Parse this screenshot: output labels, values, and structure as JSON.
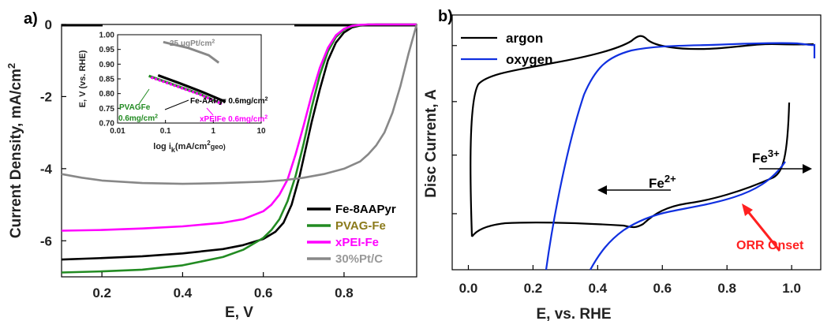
{
  "chart_data": [
    {
      "panel": "a)",
      "type": "line",
      "xlabel": "E, V",
      "ylabel": "Current Density, mA/cm",
      "ylabel_sup": "2",
      "xlim": [
        0.1,
        0.98
      ],
      "ylim": [
        -7,
        0
      ],
      "xticks": [
        0.2,
        0.4,
        0.6,
        0.8
      ],
      "yticks": [
        0,
        -2,
        -4,
        -6
      ],
      "legend_position": "bottom-right",
      "series": [
        {
          "name": "Fe-8AAPyr",
          "color": "#000000",
          "text_color": "#000000",
          "x": [
            0.1,
            0.2,
            0.3,
            0.4,
            0.5,
            0.55,
            0.6,
            0.63,
            0.65,
            0.67,
            0.69,
            0.7,
            0.72,
            0.74,
            0.76,
            0.78,
            0.8,
            0.82,
            0.84,
            0.86,
            0.88,
            0.9,
            0.92,
            0.94,
            0.96,
            0.98
          ],
          "y": [
            -6.52,
            -6.48,
            -6.43,
            -6.35,
            -6.23,
            -6.12,
            -5.95,
            -5.75,
            -5.5,
            -5.0,
            -4.2,
            -3.7,
            -2.7,
            -1.8,
            -1.0,
            -0.5,
            -0.22,
            -0.08,
            -0.03,
            -0.01,
            0,
            0,
            0,
            0,
            0,
            0
          ]
        },
        {
          "name": "PVAG-Fe",
          "color": "#228b22",
          "text_color": "#8b7a1a",
          "x": [
            0.1,
            0.2,
            0.3,
            0.4,
            0.5,
            0.55,
            0.6,
            0.62,
            0.64,
            0.66,
            0.68,
            0.7,
            0.72,
            0.74,
            0.76,
            0.78,
            0.8,
            0.82,
            0.84,
            0.86,
            0.88,
            0.9,
            0.92,
            0.94,
            0.96,
            0.98
          ],
          "y": [
            -6.88,
            -6.85,
            -6.8,
            -6.68,
            -6.45,
            -6.25,
            -5.92,
            -5.7,
            -5.4,
            -4.9,
            -4.2,
            -3.3,
            -2.3,
            -1.4,
            -0.75,
            -0.35,
            -0.14,
            -0.05,
            -0.02,
            0,
            0,
            0,
            0,
            0,
            0,
            0
          ]
        },
        {
          "name": "xPEI-Fe",
          "color": "#ff00ff",
          "text_color": "#ff00ff",
          "x": [
            0.1,
            0.2,
            0.3,
            0.4,
            0.5,
            0.55,
            0.6,
            0.62,
            0.64,
            0.66,
            0.68,
            0.7,
            0.72,
            0.74,
            0.76,
            0.78,
            0.8,
            0.82,
            0.84,
            0.86,
            0.88,
            0.9,
            0.92,
            0.94,
            0.96,
            0.98
          ],
          "y": [
            -5.72,
            -5.7,
            -5.66,
            -5.6,
            -5.5,
            -5.4,
            -5.18,
            -5.0,
            -4.72,
            -4.3,
            -3.6,
            -2.8,
            -1.95,
            -1.2,
            -0.65,
            -0.3,
            -0.12,
            -0.04,
            -0.01,
            0,
            0,
            0,
            0,
            0,
            0,
            0
          ]
        },
        {
          "name": "30%Pt/C",
          "color": "#888888",
          "text_color": "#999999",
          "x": [
            0.1,
            0.15,
            0.2,
            0.3,
            0.4,
            0.5,
            0.6,
            0.65,
            0.7,
            0.75,
            0.8,
            0.84,
            0.86,
            0.88,
            0.9,
            0.92,
            0.94,
            0.96,
            0.98
          ],
          "y": [
            -4.15,
            -4.25,
            -4.33,
            -4.4,
            -4.42,
            -4.4,
            -4.36,
            -4.32,
            -4.25,
            -4.15,
            -4.0,
            -3.8,
            -3.6,
            -3.35,
            -3.0,
            -2.45,
            -1.7,
            -0.8,
            0
          ]
        }
      ],
      "inset": {
        "xlabel_parts": [
          "log i",
          "k",
          "(mA/cm",
          "2",
          "geo)"
        ],
        "ylabel": "E, V (vs. RHE)",
        "xscale": "log",
        "xlim": [
          0.01,
          10
        ],
        "ylim": [
          0.7,
          1.0
        ],
        "xticks": [
          0.01,
          0.1,
          1,
          10
        ],
        "xtick_labels": [
          "0.01",
          "0.1",
          "1",
          "10"
        ],
        "yticks": [
          0.7,
          0.75,
          0.8,
          0.85,
          0.9,
          0.95,
          1.0
        ],
        "ytick_labels": [
          "0.70",
          "0.75",
          "0.80",
          "0.85",
          "0.90",
          "0.95",
          "1.00"
        ],
        "series": [
          {
            "color": "#888888",
            "x": [
              0.09,
              0.3,
              0.8,
              1.3
            ],
            "y": [
              0.975,
              0.955,
              0.93,
              0.905
            ]
          },
          {
            "color": "#000000",
            "x": [
              0.07,
              0.2,
              0.6,
              1.8
            ],
            "y": [
              0.862,
              0.835,
              0.805,
              0.772
            ]
          },
          {
            "color": "#228b22",
            "x": [
              0.045,
              0.15,
              0.5,
              1.5
            ],
            "y": [
              0.86,
              0.83,
              0.8,
              0.765
            ]
          },
          {
            "color": "#ff00ff",
            "x": [
              0.05,
              0.15,
              0.5,
              1.5
            ],
            "y": [
              0.855,
              0.828,
              0.798,
              0.765
            ]
          }
        ],
        "annotations": [
          {
            "parts": [
              "25 μgPt/cm",
              "2"
            ],
            "color": "#888888"
          },
          {
            "parts": [
              "Fe-AAPyr 0.6mg/cm",
              "2"
            ],
            "color": "#000000"
          },
          {
            "parts": [
              "PVAGFe",
              ""
            ],
            "color": "#228b22"
          },
          {
            "parts": [
              "0.6mg/cm",
              "2"
            ],
            "color": "#228b22"
          },
          {
            "parts": [
              "xPEIFe 0.6mg/cm",
              "2"
            ],
            "color": "#ff00ff"
          }
        ]
      }
    },
    {
      "panel": "b)",
      "type": "line",
      "xlabel": "E, vs. RHE",
      "ylabel": "Disc Current, A",
      "xlim": [
        -0.05,
        1.09
      ],
      "xticks": [
        0.0,
        0.2,
        0.4,
        0.6,
        0.8,
        1.0
      ],
      "xtick_labels": [
        "0.0",
        "0.2",
        "0.4",
        "0.6",
        "0.8",
        "1.0"
      ],
      "ylim": [
        0,
        1
      ],
      "legend_position": "top-left",
      "series": [
        {
          "name": "argon",
          "color": "#000000"
        },
        {
          "name": "oxygen",
          "color": "#1030e0"
        }
      ],
      "annotations": [
        {
          "parts": [
            "Fe",
            "2+"
          ],
          "color": "#000000"
        },
        {
          "parts": [
            "Fe",
            "3+"
          ],
          "color": "#000000"
        },
        {
          "parts": [
            "ORR Onset",
            ""
          ],
          "color": "#ff2020"
        }
      ]
    }
  ]
}
